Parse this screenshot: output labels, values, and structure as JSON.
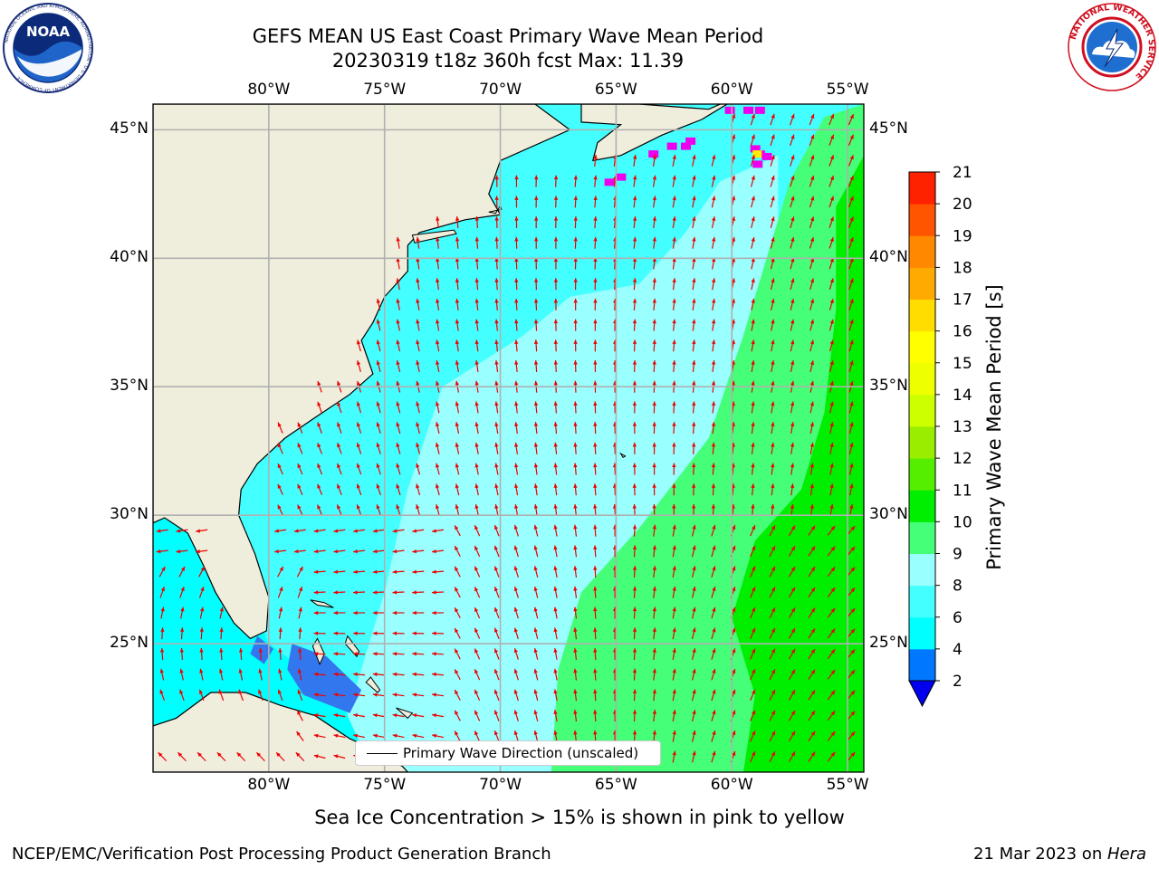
{
  "title": {
    "line1": "GEFS MEAN US East Coast Primary Wave Mean Period",
    "line2": "20230319 t18z 360h fcst   Max: 11.39"
  },
  "logos": {
    "left": "NOAA",
    "left_ring_text": "NATIONAL OCEANIC AND ATMOSPHERIC ADMINISTRATION · U.S. DEPARTMENT OF COMMERCE",
    "right_ring_text": "NATIONAL WEATHER SERVICE"
  },
  "axes": {
    "lon_ticks": [
      "80°W",
      "75°W",
      "70°W",
      "65°W",
      "60°W",
      "55°W"
    ],
    "lat_ticks": [
      "45°N",
      "40°N",
      "35°N",
      "30°N",
      "25°N"
    ],
    "lon_range": [
      -85,
      -54.3
    ],
    "lat_range": [
      20,
      46
    ],
    "grid": true
  },
  "legend": {
    "label": "Primary Wave Direction (unscaled)"
  },
  "colorbar": {
    "label": "Primary Wave Mean Period [s]",
    "ticks": [
      "2",
      "4",
      "6",
      "8",
      "9",
      "10",
      "11",
      "12",
      "13",
      "14",
      "15",
      "16",
      "17",
      "18",
      "19",
      "20",
      "21"
    ],
    "colors": [
      "#0077ff",
      "#00ffff",
      "#44ffff",
      "#99ffff",
      "#44ff77",
      "#00ee00",
      "#55ee00",
      "#99ee00",
      "#ccff00",
      "#eeff00",
      "#ffff00",
      "#ffdd00",
      "#ffaa00",
      "#ff8800",
      "#ff5500",
      "#ff2200"
    ],
    "under_color": "#0000ee"
  },
  "subtitle": "Sea Ice Concentration > 15% is shown in pink to yellow",
  "footer": {
    "left": "NCEP/EMC/Verification Post Processing Product Generation Branch",
    "right_prefix": "21 Mar 2023 on ",
    "right_host": "Hera"
  },
  "colors": {
    "land": "#efeddc",
    "arrow": "#ee0000",
    "ice": "#ee00ee",
    "grid": "#b0b0b0"
  }
}
